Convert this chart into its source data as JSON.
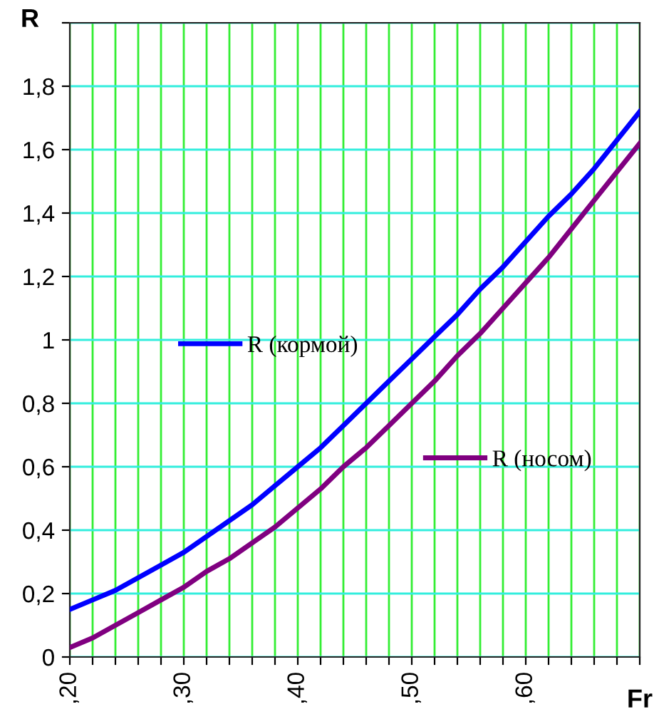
{
  "chart_data": {
    "type": "line",
    "xlabel": "Fr",
    "ylabel": "R",
    "categories": [
      ",20",
      null,
      null,
      null,
      null,
      ",30",
      null,
      null,
      null,
      null,
      ",40",
      null,
      null,
      null,
      null,
      ",50",
      null,
      null,
      null,
      null,
      ",60",
      null,
      null,
      null,
      null,
      null
    ],
    "series": [
      {
        "name": "R (кормой)",
        "color": "#0000ff",
        "values": [
          0.15,
          0.18,
          0.21,
          0.25,
          0.29,
          0.33,
          0.38,
          0.43,
          0.48,
          0.54,
          0.6,
          0.66,
          0.73,
          0.8,
          0.87,
          0.94,
          1.01,
          1.08,
          1.16,
          1.23,
          1.31,
          1.39,
          1.46,
          1.54,
          1.63,
          1.72
        ]
      },
      {
        "name": "R (носом)",
        "color": "#800080",
        "values": [
          0.03,
          0.06,
          0.1,
          0.14,
          0.18,
          0.22,
          0.27,
          0.31,
          0.36,
          0.41,
          0.47,
          0.53,
          0.6,
          0.66,
          0.73,
          0.8,
          0.87,
          0.95,
          1.02,
          1.1,
          1.18,
          1.26,
          1.35,
          1.44,
          1.53,
          1.62
        ]
      }
    ],
    "ylim": [
      0,
      2
    ],
    "yticks": [
      0,
      {
        "value": 0.2,
        "label": "0,2"
      },
      {
        "value": 0.4,
        "label": "0,4"
      },
      {
        "value": 0.6,
        "label": "0,6"
      },
      {
        "value": 0.8,
        "label": "0,8"
      },
      1,
      {
        "value": 1.2,
        "label": "1,2"
      },
      {
        "value": 1.4,
        "label": "1,4"
      },
      {
        "value": 1.6,
        "label": "1,6"
      },
      {
        "value": 1.8,
        "label": "1,8"
      },
      {
        "value": 2,
        "label": null
      }
    ],
    "grid": true,
    "legend": "center",
    "marker": "none",
    "line_style": "solid"
  }
}
